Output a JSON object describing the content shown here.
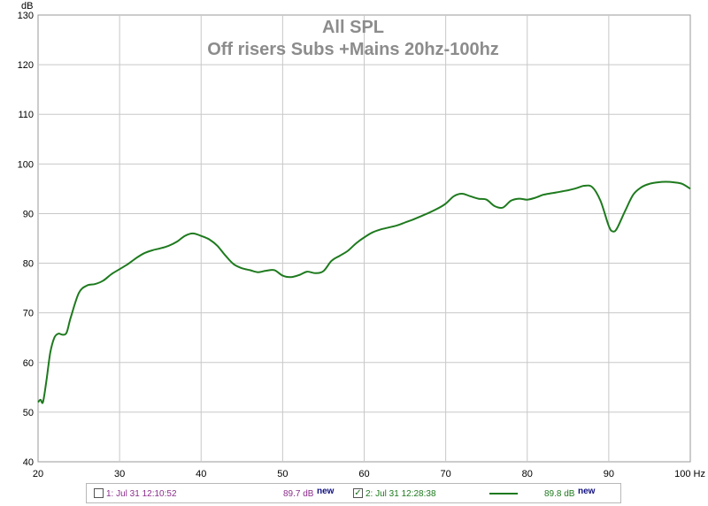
{
  "chart_data": {
    "type": "line",
    "title": "All SPL",
    "subtitle": "Off risers Subs +Mains 20hz-100hz",
    "ylabel": "dB",
    "xlabel": "Hz",
    "xlim": [
      20,
      100
    ],
    "ylim": [
      40,
      130
    ],
    "x_ticks": [
      "20",
      "30",
      "40",
      "50",
      "60",
      "70",
      "80",
      "90",
      "100 Hz"
    ],
    "y_ticks": [
      "40",
      "50",
      "60",
      "70",
      "80",
      "90",
      "100",
      "110",
      "120",
      "130"
    ],
    "grid": true,
    "series": [
      {
        "color": "#1e7a1e",
        "x": [
          20,
          20.3,
          20.6,
          21.0,
          21.5,
          22.0,
          22.5,
          23.0,
          23.5,
          24.0,
          25.0,
          26.0,
          27.0,
          28.0,
          29.0,
          30.0,
          31.0,
          32.0,
          33.0,
          34.0,
          35.0,
          36.0,
          37.0,
          38.0,
          39.0,
          40.0,
          41.0,
          42.0,
          43.0,
          44.0,
          45.0,
          46.0,
          47.0,
          48.0,
          49.0,
          50.0,
          51.0,
          52.0,
          53.0,
          54.0,
          55.0,
          56.0,
          57.0,
          58.0,
          59.0,
          60.0,
          61.0,
          62.0,
          63.0,
          64.0,
          65.0,
          66.0,
          67.0,
          68.0,
          69.0,
          70.0,
          71.0,
          72.0,
          73.0,
          74.0,
          75.0,
          76.0,
          77.0,
          78.0,
          79.0,
          80.0,
          81.0,
          82.0,
          83.0,
          84.0,
          85.0,
          86.0,
          87.0,
          88.0,
          89.0,
          90.0,
          90.5,
          91.0,
          92.0,
          93.0,
          94.0,
          95.0,
          96.0,
          97.0,
          98.0,
          99.0,
          100.0
        ],
        "y": [
          52.0,
          52.5,
          52.0,
          56.0,
          62.0,
          65.0,
          65.8,
          65.6,
          66.0,
          69.0,
          74.0,
          75.5,
          75.8,
          76.5,
          77.8,
          78.8,
          79.8,
          81.0,
          82.0,
          82.6,
          83.0,
          83.5,
          84.3,
          85.5,
          86.0,
          85.5,
          84.8,
          83.5,
          81.5,
          79.8,
          79.0,
          78.6,
          78.2,
          78.5,
          78.6,
          77.5,
          77.2,
          77.6,
          78.3,
          78.0,
          78.4,
          80.5,
          81.5,
          82.5,
          84.0,
          85.2,
          86.2,
          86.8,
          87.2,
          87.6,
          88.2,
          88.8,
          89.5,
          90.2,
          91.0,
          92.0,
          93.5,
          94.0,
          93.5,
          93.0,
          92.8,
          91.5,
          91.2,
          92.6,
          93.0,
          92.8,
          93.2,
          93.8,
          94.1,
          94.4,
          94.7,
          95.1,
          95.6,
          95.3,
          92.5,
          87.5,
          86.4,
          87.0,
          90.5,
          93.8,
          95.3,
          96.0,
          96.3,
          96.4,
          96.3,
          96.0,
          95.0
        ]
      }
    ]
  },
  "legend": {
    "item1_label": "1: Jul 31 12:10:52",
    "item1_value": "89.7 dB",
    "item1_new": "new",
    "item1_color": "#8b2d8b",
    "item2_check": "✓",
    "item2_label": "2: Jul 31 12:28:38",
    "item2_value": "89.8 dB",
    "item2_new": "new",
    "item2_color": "#1e7a1e"
  }
}
